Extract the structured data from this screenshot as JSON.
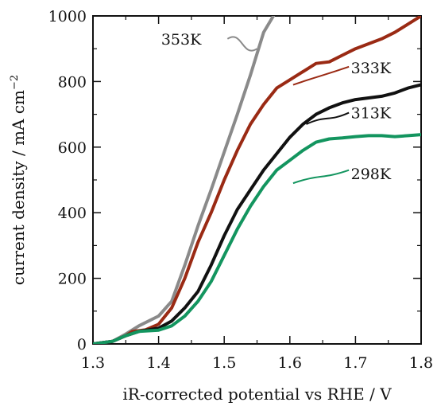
{
  "chart_data": {
    "type": "line",
    "xlabel": "iR-corrected potential vs RHE / V",
    "ylabel_main": "current density / mA cm",
    "ylabel_sup": "−2",
    "xlim": [
      1.3,
      1.8
    ],
    "ylim": [
      0,
      1000
    ],
    "x_ticks": [
      "1.3",
      "1.4",
      "1.5",
      "1.6",
      "1.7",
      "1.8"
    ],
    "y_ticks": [
      "0",
      "200",
      "400",
      "600",
      "800",
      "1000"
    ],
    "grid": false,
    "series": [
      {
        "name": "353K",
        "color": "#8a8a8a",
        "x": [
          1.3,
          1.33,
          1.35,
          1.37,
          1.4,
          1.42,
          1.44,
          1.46,
          1.48,
          1.5,
          1.52,
          1.54,
          1.56,
          1.575
        ],
        "y": [
          0,
          8,
          30,
          55,
          85,
          130,
          240,
          360,
          470,
          585,
          700,
          820,
          950,
          1000
        ]
      },
      {
        "name": "333K",
        "color": "#9a2a14",
        "x": [
          1.3,
          1.33,
          1.35,
          1.36,
          1.38,
          1.4,
          1.42,
          1.44,
          1.46,
          1.48,
          1.5,
          1.52,
          1.54,
          1.56,
          1.58,
          1.6,
          1.62,
          1.64,
          1.66,
          1.68,
          1.7,
          1.72,
          1.74,
          1.76,
          1.78,
          1.8
        ],
        "y": [
          0,
          8,
          25,
          38,
          43,
          60,
          110,
          200,
          310,
          400,
          500,
          590,
          670,
          730,
          780,
          805,
          830,
          855,
          860,
          880,
          900,
          915,
          930,
          950,
          975,
          1000
        ]
      },
      {
        "name": "313K",
        "color": "#111111",
        "x": [
          1.3,
          1.33,
          1.35,
          1.37,
          1.4,
          1.42,
          1.44,
          1.46,
          1.48,
          1.5,
          1.52,
          1.54,
          1.56,
          1.58,
          1.6,
          1.62,
          1.64,
          1.66,
          1.68,
          1.7,
          1.72,
          1.74,
          1.76,
          1.78,
          1.8
        ],
        "y": [
          0,
          8,
          25,
          38,
          48,
          70,
          110,
          160,
          240,
          330,
          410,
          470,
          530,
          580,
          630,
          670,
          700,
          720,
          735,
          745,
          750,
          755,
          765,
          780,
          790
        ]
      },
      {
        "name": "298K",
        "color": "#13955f",
        "x": [
          1.3,
          1.33,
          1.35,
          1.37,
          1.4,
          1.42,
          1.44,
          1.46,
          1.48,
          1.5,
          1.52,
          1.54,
          1.56,
          1.58,
          1.6,
          1.62,
          1.64,
          1.66,
          1.68,
          1.7,
          1.72,
          1.74,
          1.76,
          1.78,
          1.8
        ],
        "y": [
          0,
          8,
          25,
          38,
          42,
          55,
          85,
          130,
          190,
          270,
          350,
          420,
          480,
          530,
          560,
          590,
          615,
          625,
          628,
          632,
          635,
          635,
          632,
          635,
          638
        ]
      }
    ],
    "annotations": [
      {
        "text": "353K",
        "series": 0,
        "label_x": 1.465,
        "label_y": 930,
        "x0": 1.505,
        "y0": 930,
        "x1": 1.55,
        "y1": 900
      },
      {
        "text": "333K",
        "series": 1,
        "label_x": 1.693,
        "label_y": 842,
        "x0": 1.605,
        "y0": 790,
        "x1": 1.69,
        "y1": 845
      },
      {
        "text": "313K",
        "series": 2,
        "label_x": 1.693,
        "label_y": 705,
        "x0": 1.625,
        "y0": 670,
        "x1": 1.69,
        "y1": 705
      },
      {
        "text": "298K",
        "series": 3,
        "label_x": 1.693,
        "label_y": 520,
        "x0": 1.605,
        "y0": 490,
        "x1": 1.69,
        "y1": 530
      }
    ]
  }
}
